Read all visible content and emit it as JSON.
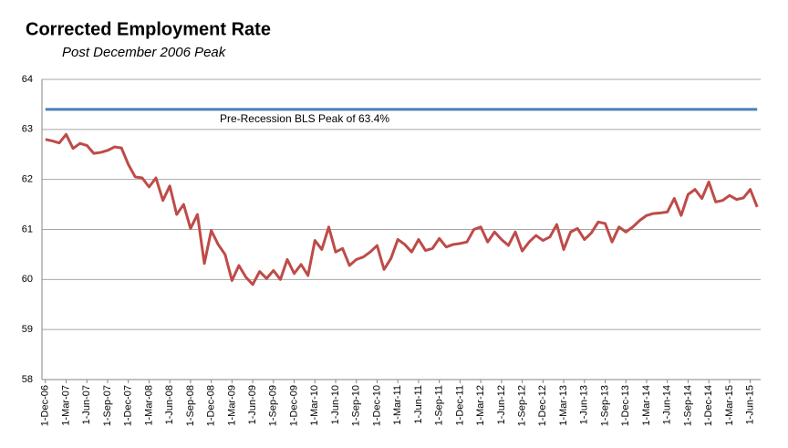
{
  "chart_data": {
    "type": "line",
    "title": "Corrected Employment Rate",
    "subtitle": "Post December 2006 Peak",
    "annotation": "Pre-Recession BLS Peak of 63.4%",
    "categories": [
      "1-Dec-06",
      null,
      null,
      "1-Mar-07",
      null,
      null,
      "1-Jun-07",
      null,
      null,
      "1-Sep-07",
      null,
      null,
      "1-Dec-07",
      null,
      null,
      "1-Mar-08",
      null,
      null,
      "1-Jun-08",
      null,
      null,
      "1-Sep-08",
      null,
      null,
      "1-Dec-08",
      null,
      null,
      "1-Mar-09",
      null,
      null,
      "1-Jun-09",
      null,
      null,
      "1-Sep-09",
      null,
      null,
      "1-Dec-09",
      null,
      null,
      "1-Mar-10",
      null,
      null,
      "1-Jun-10",
      null,
      null,
      "1-Sep-10",
      null,
      null,
      "1-Dec-10",
      null,
      null,
      "1-Mar-11",
      null,
      null,
      "1-Jun-11",
      null,
      null,
      "1-Sep-11",
      null,
      null,
      "1-Dec-11",
      null,
      null,
      "1-Mar-12",
      null,
      null,
      "1-Jun-12",
      null,
      null,
      "1-Sep-12",
      null,
      null,
      "1-Dec-12",
      null,
      null,
      "1-Mar-13",
      null,
      null,
      "1-Jun-13",
      null,
      null,
      "1-Sep-13",
      null,
      null,
      "1-Dec-13",
      null,
      null,
      "1-Mar-14",
      null,
      null,
      "1-Jun-14",
      null,
      null,
      "1-Sep-14",
      null,
      null,
      "1-Dec-14",
      null,
      null,
      "1-Mar-15",
      null,
      null,
      "1-Jun-15",
      null
    ],
    "series": [
      {
        "name": "Pre-Recession BLS Peak",
        "color": "#4a7ebb",
        "values": [
          63.4,
          63.4,
          63.4,
          63.4,
          63.4,
          63.4,
          63.4,
          63.4,
          63.4,
          63.4,
          63.4,
          63.4,
          63.4,
          63.4,
          63.4,
          63.4,
          63.4,
          63.4,
          63.4,
          63.4,
          63.4,
          63.4,
          63.4,
          63.4,
          63.4,
          63.4,
          63.4,
          63.4,
          63.4,
          63.4,
          63.4,
          63.4,
          63.4,
          63.4,
          63.4,
          63.4,
          63.4,
          63.4,
          63.4,
          63.4,
          63.4,
          63.4,
          63.4,
          63.4,
          63.4,
          63.4,
          63.4,
          63.4,
          63.4,
          63.4,
          63.4,
          63.4,
          63.4,
          63.4,
          63.4,
          63.4,
          63.4,
          63.4,
          63.4,
          63.4,
          63.4,
          63.4,
          63.4,
          63.4,
          63.4,
          63.4,
          63.4,
          63.4,
          63.4,
          63.4,
          63.4,
          63.4,
          63.4,
          63.4,
          63.4,
          63.4,
          63.4,
          63.4,
          63.4,
          63.4,
          63.4,
          63.4,
          63.4,
          63.4,
          63.4,
          63.4,
          63.4,
          63.4,
          63.4,
          63.4,
          63.4,
          63.4,
          63.4,
          63.4,
          63.4,
          63.4,
          63.4,
          63.4,
          63.4,
          63.4,
          63.4,
          63.4,
          63.4,
          63.4
        ]
      },
      {
        "name": "Corrected Employment Rate",
        "color": "#be4b48",
        "values": [
          62.8,
          62.77,
          62.73,
          62.9,
          62.62,
          62.72,
          62.68,
          62.52,
          62.54,
          62.58,
          62.65,
          62.63,
          62.3,
          62.05,
          62.03,
          61.85,
          62.03,
          61.58,
          61.87,
          61.3,
          61.5,
          61.02,
          61.3,
          60.32,
          60.98,
          60.7,
          60.5,
          59.98,
          60.28,
          60.05,
          59.9,
          60.16,
          60.02,
          60.18,
          60.0,
          60.4,
          60.12,
          60.3,
          60.08,
          60.78,
          60.6,
          61.05,
          60.55,
          60.62,
          60.28,
          60.4,
          60.45,
          60.55,
          60.68,
          60.2,
          60.42,
          60.8,
          60.7,
          60.55,
          60.8,
          60.58,
          60.62,
          60.82,
          60.65,
          60.7,
          60.72,
          60.75,
          61.0,
          61.05,
          60.75,
          60.95,
          60.8,
          60.68,
          60.95,
          60.57,
          60.75,
          60.88,
          60.78,
          60.85,
          61.1,
          60.6,
          60.95,
          61.02,
          60.8,
          60.93,
          61.15,
          61.12,
          60.75,
          61.05,
          60.95,
          61.05,
          61.18,
          61.28,
          61.32,
          61.33,
          61.35,
          61.62,
          61.28,
          61.7,
          61.8,
          61.62,
          61.95,
          61.55,
          61.58,
          61.68,
          61.6,
          61.63,
          61.8,
          61.45
        ]
      }
    ],
    "ylim": [
      58,
      64
    ],
    "yticks": [
      58,
      59,
      60,
      61,
      62,
      63,
      64
    ],
    "grid": true
  }
}
